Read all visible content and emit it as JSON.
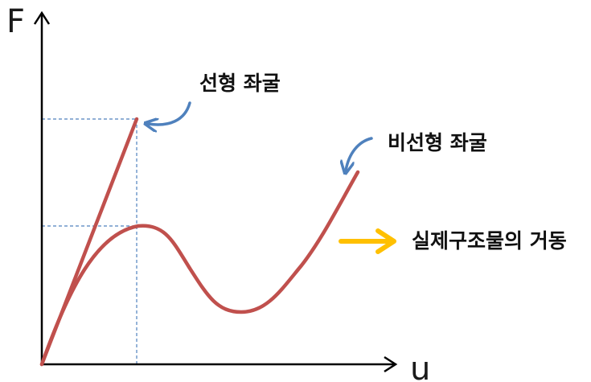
{
  "axes": {
    "y_label": "F",
    "x_label": "u"
  },
  "labels": {
    "linear": "선형 좌굴",
    "nonlinear": "비선형 좌굴",
    "actual": "실제구조물의 거동"
  },
  "colors": {
    "curve": "#c0504d",
    "pointer_arrow": "#4f81bd",
    "guide_line": "#4f81bd",
    "actual_arrow": "#ffc000",
    "axis": "#000000"
  },
  "icons": {
    "linear_pointer": "curved-arrow-icon",
    "nonlinear_pointer": "curved-arrow-icon",
    "actual_pointer": "right-arrow-icon"
  }
}
